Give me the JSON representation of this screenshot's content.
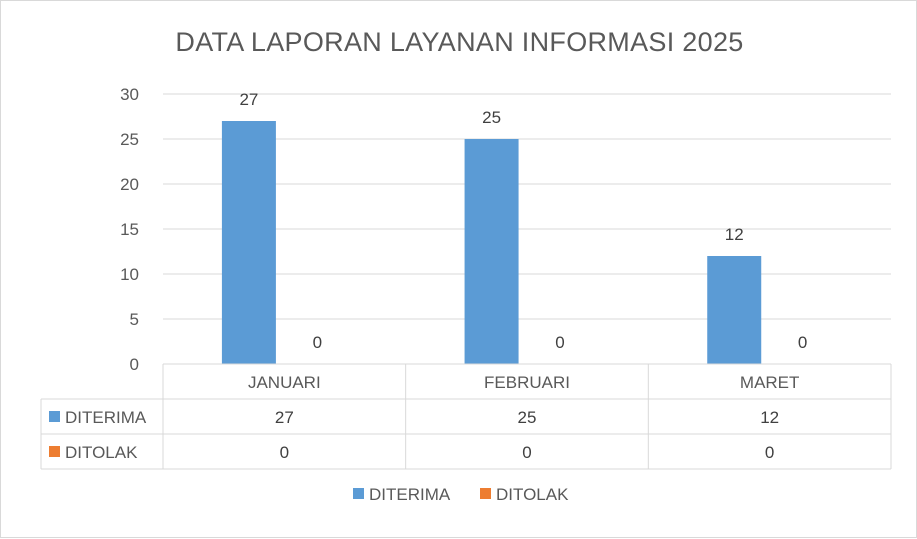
{
  "chart_data": {
    "type": "bar",
    "title": "DATA LAPORAN LAYANAN INFORMASI 2025",
    "categories": [
      "JANUARI",
      "FEBRUARI",
      "MARET"
    ],
    "series": [
      {
        "name": "DITERIMA",
        "values": [
          27,
          25,
          12
        ],
        "color": "#5b9bd5"
      },
      {
        "name": "DITOLAK",
        "values": [
          0,
          0,
          0
        ],
        "color": "#ed7d31"
      }
    ],
    "ylim": [
      0,
      30
    ],
    "yticks": [
      0,
      5,
      10,
      15,
      20,
      25,
      30
    ],
    "grid": true,
    "data_table": true,
    "legend_position": "bottom"
  }
}
